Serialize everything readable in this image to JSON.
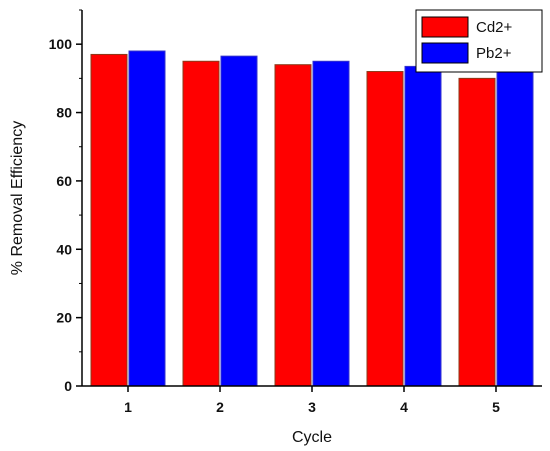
{
  "chart_data": {
    "type": "bar",
    "xlabel": "Cycle",
    "ylabel": "% Removal Efficiency",
    "categories": [
      "1",
      "2",
      "3",
      "4",
      "5"
    ],
    "ylim": [
      0,
      110
    ],
    "yticks": [
      "0",
      "20",
      "40",
      "60",
      "80",
      "100"
    ],
    "grid": false,
    "legend_position": "top-right",
    "series": [
      {
        "name": "Cd2+",
        "color": "#ff0000",
        "edge_color": "#8b3a1a",
        "values": [
          97,
          95,
          94,
          92,
          90
        ]
      },
      {
        "name": "Pb2+",
        "color": "#0000ff",
        "edge_color": "#3333cc",
        "values": [
          98,
          96.5,
          95,
          93.5,
          92
        ]
      }
    ]
  }
}
